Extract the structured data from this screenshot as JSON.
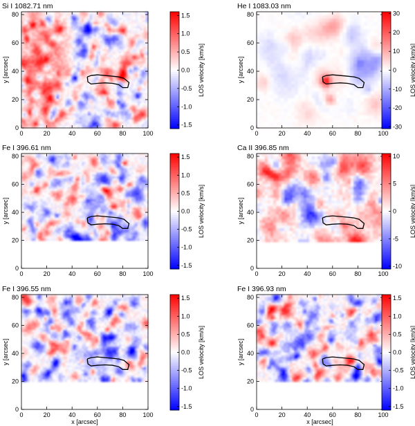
{
  "figure": {
    "x_axis_label": "x [arcsec]",
    "y_axis_label": "y [arcsec]",
    "colorbar_label": "LOS velocity [km/s]"
  },
  "colors": {
    "negative": "#0000ff",
    "zero": "#ffffff",
    "positive": "#ff0000",
    "contour": "#000000"
  },
  "chart_data": [
    {
      "type": "heatmap",
      "title": "Si I 1082.71 nm",
      "xlabel": "",
      "ylabel": "y [arcsec]",
      "xlim": [
        0,
        100
      ],
      "ylim": [
        0,
        82
      ],
      "x_ticks": [
        "0",
        "20",
        "40",
        "60",
        "80",
        "100"
      ],
      "y_ticks": [
        "0",
        "20",
        "40",
        "60",
        "80"
      ],
      "data_ymin": 0,
      "colorbar": {
        "label": "LOS velocity [km/s]",
        "range": [
          -1.6,
          1.6
        ],
        "ticks": [
          "-1.5",
          "-1.0",
          "-0.5",
          "0.0",
          "0.5",
          "1.0",
          "1.5"
        ]
      },
      "pattern": "granular",
      "features": [
        {
          "x": 10,
          "y": 35,
          "r": 14,
          "v": 0.6
        },
        {
          "x": 25,
          "y": 55,
          "r": 12,
          "v": 0.5
        },
        {
          "x": 78,
          "y": 31,
          "r": 3,
          "v": -1.2
        },
        {
          "x": 76,
          "y": 70,
          "r": 4,
          "v": 0.9
        },
        {
          "x": 90,
          "y": 45,
          "r": 8,
          "v": 0.4
        }
      ]
    },
    {
      "type": "heatmap",
      "title": "He I 1083.03 nm",
      "xlabel": "",
      "ylabel": "y [arcsec]",
      "xlim": [
        0,
        100
      ],
      "ylim": [
        0,
        82
      ],
      "x_ticks": [
        "0",
        "20",
        "40",
        "60",
        "80",
        "100"
      ],
      "y_ticks": [
        "0",
        "20",
        "40",
        "60",
        "80"
      ],
      "data_ymin": 0,
      "colorbar": {
        "label": "LOS velocity [km/s]",
        "range": [
          -31,
          31
        ],
        "ticks": [
          "-30",
          "-20",
          "-10",
          "0",
          "10",
          "20",
          "30"
        ]
      },
      "pattern": "smooth",
      "features": [
        {
          "x": 55,
          "y": 33,
          "r": 4,
          "v": 25
        },
        {
          "x": 63,
          "y": 72,
          "r": 7,
          "v": 10
        },
        {
          "x": 58,
          "y": 20,
          "r": 4,
          "v": 14
        },
        {
          "x": 20,
          "y": 40,
          "r": 18,
          "v": -5
        },
        {
          "x": 85,
          "y": 40,
          "r": 12,
          "v": -4
        }
      ]
    },
    {
      "type": "heatmap",
      "title": "Fe I 396.61 nm",
      "xlabel": "",
      "ylabel": "y [arcsec]",
      "xlim": [
        0,
        100
      ],
      "ylim": [
        0,
        82
      ],
      "x_ticks": [
        "0",
        "20",
        "40",
        "60",
        "80",
        "100"
      ],
      "y_ticks": [
        "0",
        "20",
        "40",
        "60",
        "80"
      ],
      "data_ymin": 20,
      "colorbar": {
        "label": "LOS velocity [km/s]",
        "range": [
          -1.6,
          1.6
        ],
        "ticks": [
          "-1.5",
          "-1.0",
          "-0.5",
          "0.0",
          "0.5",
          "1.0",
          "1.5"
        ]
      },
      "pattern": "granular",
      "features": [
        {
          "x": 72,
          "y": 68,
          "r": 4,
          "v": 1.2
        },
        {
          "x": 62,
          "y": 38,
          "r": 10,
          "v": -0.6
        },
        {
          "x": 56,
          "y": 50,
          "r": 8,
          "v": -0.5
        }
      ]
    },
    {
      "type": "heatmap",
      "title": "Ca II 396.85 nm",
      "xlabel": "",
      "ylabel": "y [arcsec]",
      "xlim": [
        0,
        100
      ],
      "ylim": [
        0,
        82
      ],
      "x_ticks": [
        "0",
        "20",
        "40",
        "60",
        "80",
        "100"
      ],
      "y_ticks": [
        "0",
        "20",
        "40",
        "60",
        "80"
      ],
      "data_ymin": 20,
      "colorbar": {
        "label": "LOS velocity [km/s]",
        "range": [
          -10.5,
          10.5
        ],
        "ticks": [
          "-10",
          "-5",
          "0",
          "5",
          "10"
        ]
      },
      "pattern": "patchy",
      "features": [
        {
          "x": 68,
          "y": 72,
          "r": 10,
          "v": 8
        },
        {
          "x": 10,
          "y": 30,
          "r": 9,
          "v": 7
        },
        {
          "x": 45,
          "y": 65,
          "r": 7,
          "v": 6
        },
        {
          "x": 80,
          "y": 60,
          "r": 7,
          "v": -7
        },
        {
          "x": 28,
          "y": 55,
          "r": 8,
          "v": -6
        },
        {
          "x": 68,
          "y": 45,
          "r": 6,
          "v": -5
        }
      ]
    },
    {
      "type": "heatmap",
      "title": "Fe I 396.55 nm",
      "xlabel": "x [arcsec]",
      "ylabel": "y [arcsec]",
      "xlim": [
        0,
        100
      ],
      "ylim": [
        0,
        82
      ],
      "x_ticks": [
        "0",
        "20",
        "40",
        "60",
        "80",
        "100"
      ],
      "y_ticks": [
        "0",
        "20",
        "40",
        "60",
        "80"
      ],
      "data_ymin": 20,
      "colorbar": {
        "label": "LOS velocity [km/s]",
        "range": [
          -1.6,
          1.6
        ],
        "ticks": [
          "-1.5",
          "-1.0",
          "-0.5",
          "0.0",
          "0.5",
          "1.0",
          "1.5"
        ]
      },
      "pattern": "granular",
      "features": [
        {
          "x": 58,
          "y": 38,
          "r": 12,
          "v": -0.8
        },
        {
          "x": 75,
          "y": 65,
          "r": 5,
          "v": 0.9
        }
      ]
    },
    {
      "type": "heatmap",
      "title": "Fe I 396.93 nm",
      "xlabel": "x [arcsec]",
      "ylabel": "y [arcsec]",
      "xlim": [
        0,
        100
      ],
      "ylim": [
        0,
        82
      ],
      "x_ticks": [
        "0",
        "20",
        "40",
        "60",
        "80",
        "100"
      ],
      "y_ticks": [
        "0",
        "20",
        "40",
        "60",
        "80"
      ],
      "data_ymin": 20,
      "colorbar": {
        "label": "LOS velocity [km/s]",
        "range": [
          -1.6,
          1.6
        ],
        "ticks": [
          "-1.5",
          "-1.0",
          "-0.5",
          "0.0",
          "0.5",
          "1.0",
          "1.5"
        ]
      },
      "pattern": "granular",
      "features": [
        {
          "x": 75,
          "y": 68,
          "r": 5,
          "v": 1.1
        },
        {
          "x": 80,
          "y": 30,
          "r": 3,
          "v": -1.2
        }
      ]
    }
  ],
  "contour": {
    "name": "filament-contour",
    "points": [
      [
        52,
        36
      ],
      [
        55,
        37
      ],
      [
        60,
        37.5
      ],
      [
        66,
        37
      ],
      [
        72,
        36.5
      ],
      [
        77,
        36
      ],
      [
        81,
        35
      ],
      [
        85,
        32
      ],
      [
        84,
        28.5
      ],
      [
        80,
        28.5
      ],
      [
        77,
        30.5
      ],
      [
        72,
        31.5
      ],
      [
        66,
        31.8
      ],
      [
        60,
        31.5
      ],
      [
        55,
        31
      ],
      [
        52.5,
        32.5
      ],
      [
        52,
        36
      ]
    ]
  }
}
